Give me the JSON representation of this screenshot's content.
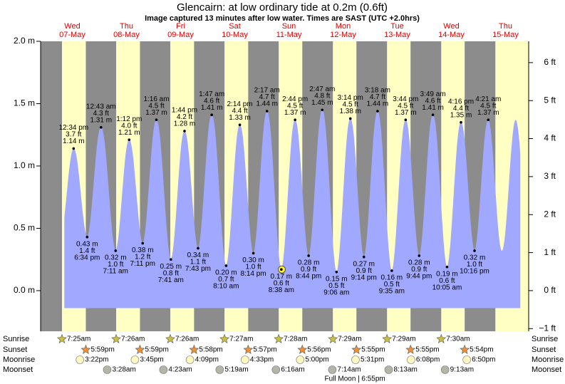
{
  "chart_data": {
    "type": "tide",
    "title": "Glencairn: at low  ordinary tide at 0.2m (0.6ft)",
    "subtitle": "Image captured 13 minutes after low water. Times are SAST (UTC +2.0hrs)",
    "color": "#a0a8ff",
    "night_color": "#8c8c8c",
    "day_color": "#ffffc4",
    "ylim": [
      -0.326,
      2.0
    ],
    "yticks": [
      {
        "value": 0,
        "label": "0.0 m"
      },
      {
        "value": 0.5,
        "label": "0.5 m"
      },
      {
        "value": 1,
        "label": "1.0 m"
      },
      {
        "value": 1.5,
        "label": "1.5 m"
      },
      {
        "value": 2,
        "label": "2.0 m"
      }
    ],
    "y2lim": [
      -1.07,
      6.56
    ],
    "y2ticks": [
      {
        "value": -1,
        "label": "−1 ft"
      },
      {
        "value": 0,
        "label": "0 ft"
      },
      {
        "value": 1,
        "label": "1 ft"
      },
      {
        "value": 2,
        "label": "2 ft"
      },
      {
        "value": 3,
        "label": "3 ft"
      },
      {
        "value": 4,
        "label": "4 ft"
      },
      {
        "value": 5,
        "label": "5 ft"
      },
      {
        "value": 6,
        "label": "6 ft"
      }
    ],
    "row_labels": {
      "sunrise": "Sunrise",
      "sunset": "Sunset",
      "moonrise": "Moonrise",
      "moonset": "Moonset"
    },
    "days": [
      {
        "weekday": "Wed",
        "date": "07-May",
        "sunrise": "7:25am",
        "sunset": "5:59pm",
        "moonrise": "3:22pm",
        "moonset": null,
        "tides": [
          {
            "time": "12:34 pm",
            "m": 1.14,
            "m_label": "1.14 m",
            "ft_label": "3.7 ft"
          },
          {
            "time": "6:34 pm",
            "m": 0.43,
            "m_label": "0.43 m",
            "ft_label": "1.4 ft"
          }
        ]
      },
      {
        "weekday": "Thu",
        "date": "08-May",
        "sunrise": "7:26am",
        "sunset": "5:59pm",
        "moonrise": "3:45pm",
        "moonset": "3:28am",
        "tides": [
          {
            "time": "12:43 am",
            "m": 1.31,
            "m_label": "1.31 m",
            "ft_label": "4.3 ft"
          },
          {
            "time": "7:11 am",
            "m": 0.32,
            "m_label": "0.32 m",
            "ft_label": "1.0 ft"
          },
          {
            "time": "1:12 pm",
            "m": 1.21,
            "m_label": "1.21 m",
            "ft_label": "4.0 ft"
          },
          {
            "time": "7:11 pm",
            "m": 0.38,
            "m_label": "0.38 m",
            "ft_label": "1.2 ft"
          }
        ]
      },
      {
        "weekday": "Fri",
        "date": "09-May",
        "sunrise": "7:26am",
        "sunset": "5:58pm",
        "moonrise": "4:09pm",
        "moonset": "4:23am",
        "tides": [
          {
            "time": "1:16 am",
            "m": 1.37,
            "m_label": "1.37 m",
            "ft_label": "4.5 ft"
          },
          {
            "time": "7:41 am",
            "m": 0.25,
            "m_label": "0.25 m",
            "ft_label": "0.8 ft"
          },
          {
            "time": "1:44 pm",
            "m": 1.28,
            "m_label": "1.28 m",
            "ft_label": "4.2 ft"
          },
          {
            "time": "7:43 pm",
            "m": 0.34,
            "m_label": "0.34 m",
            "ft_label": "1.1 ft"
          }
        ]
      },
      {
        "weekday": "Sat",
        "date": "10-May",
        "sunrise": "7:27am",
        "sunset": "5:57pm",
        "moonrise": "4:33pm",
        "moonset": "5:19am",
        "tides": [
          {
            "time": "1:47 am",
            "m": 1.41,
            "m_label": "1.41 m",
            "ft_label": "4.6 ft"
          },
          {
            "time": "8:10 am",
            "m": 0.2,
            "m_label": "0.20 m",
            "ft_label": "0.7 ft"
          },
          {
            "time": "2:14 pm",
            "m": 1.33,
            "m_label": "1.33 m",
            "ft_label": "4.4 ft"
          },
          {
            "time": "8:14 pm",
            "m": 0.3,
            "m_label": "0.30 m",
            "ft_label": "1.0 ft"
          }
        ]
      },
      {
        "weekday": "Sun",
        "date": "11-May",
        "sunrise": "7:28am",
        "sunset": "5:56pm",
        "moonrise": "5:00pm",
        "moonset": "6:16am",
        "tides": [
          {
            "time": "2:17 am",
            "m": 1.44,
            "m_label": "1.44 m",
            "ft_label": "4.7 ft"
          },
          {
            "time": "8:38 am",
            "m": 0.17,
            "m_label": "0.17 m",
            "ft_label": "0.6 ft"
          },
          {
            "time": "2:44 pm",
            "m": 1.37,
            "m_label": "1.37 m",
            "ft_label": "4.5 ft"
          },
          {
            "time": "8:44 pm",
            "m": 0.28,
            "m_label": "0.28 m",
            "ft_label": "0.9 ft"
          }
        ]
      },
      {
        "weekday": "Mon",
        "date": "12-May",
        "sunrise": "7:29am",
        "sunset": "5:55pm",
        "moonrise": "5:31pm",
        "moonset": "7:14am",
        "full_moon": {
          "label": "Full Moon",
          "time": "6:55pm"
        },
        "tides": [
          {
            "time": "2:47 am",
            "m": 1.45,
            "m_label": "1.45 m",
            "ft_label": "4.8 ft"
          },
          {
            "time": "9:06 am",
            "m": 0.15,
            "m_label": "0.15 m",
            "ft_label": "0.5 ft"
          },
          {
            "time": "3:14 pm",
            "m": 1.38,
            "m_label": "1.38 m",
            "ft_label": "4.5 ft"
          },
          {
            "time": "9:14 pm",
            "m": 0.27,
            "m_label": "0.27 m",
            "ft_label": "0.9 ft"
          }
        ]
      },
      {
        "weekday": "Tue",
        "date": "13-May",
        "sunrise": "7:29am",
        "sunset": "5:55pm",
        "moonrise": "6:08pm",
        "moonset": "8:13am",
        "tides": [
          {
            "time": "3:18 am",
            "m": 1.44,
            "m_label": "1.44 m",
            "ft_label": "4.7 ft"
          },
          {
            "time": "9:35 am",
            "m": 0.16,
            "m_label": "0.16 m",
            "ft_label": "0.5 ft"
          },
          {
            "time": "3:44 pm",
            "m": 1.37,
            "m_label": "1.37 m",
            "ft_label": "4.5 ft"
          },
          {
            "time": "9:44 pm",
            "m": 0.28,
            "m_label": "0.28 m",
            "ft_label": "0.9 ft"
          }
        ]
      },
      {
        "weekday": "Wed",
        "date": "14-May",
        "sunrise": "7:30am",
        "sunset": "5:54pm",
        "moonrise": "6:50pm",
        "moonset": "9:13am",
        "tides": [
          {
            "time": "3:49 am",
            "m": 1.41,
            "m_label": "1.41 m",
            "ft_label": "4.6 ft"
          },
          {
            "time": "10:05 am",
            "m": 0.19,
            "m_label": "0.19 m",
            "ft_label": "0.6 ft"
          },
          {
            "time": "4:16 pm",
            "m": 1.35,
            "m_label": "1.35 m",
            "ft_label": "4.4 ft"
          },
          {
            "time": "10:16 pm",
            "m": 0.32,
            "m_label": "0.32 m",
            "ft_label": "1.0 ft"
          }
        ]
      },
      {
        "weekday": "Thu",
        "date": "15-May",
        "sunrise": null,
        "sunset": null,
        "moonrise": null,
        "moonset": null,
        "tides": [
          {
            "time": "4:21 am",
            "m": 1.37,
            "m_label": "1.37 m",
            "ft_label": "4.5 ft"
          }
        ]
      }
    ]
  }
}
